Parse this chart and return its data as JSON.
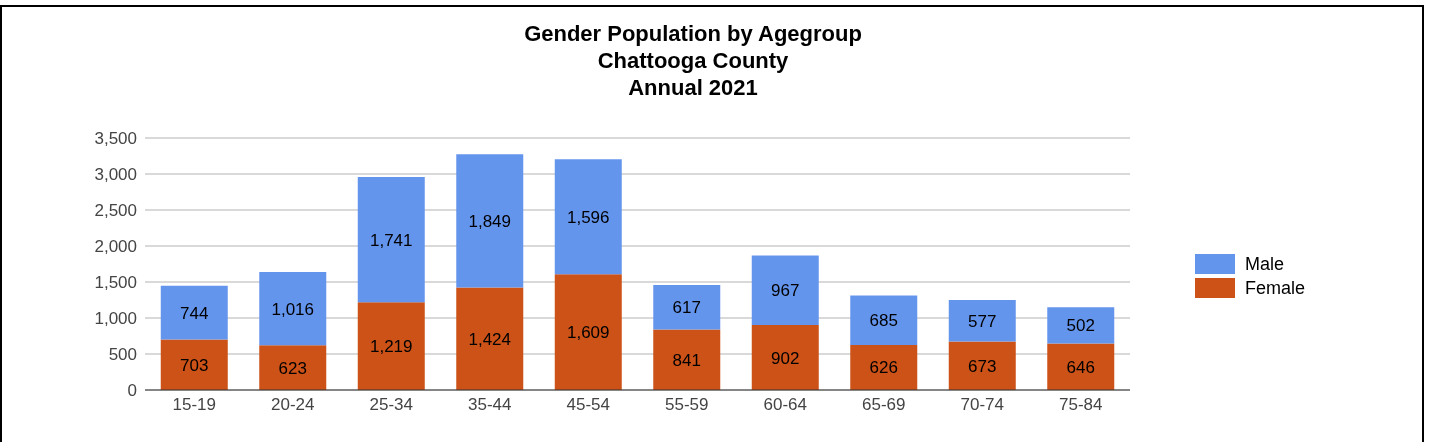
{
  "chart_data": {
    "type": "bar",
    "title": "Gender Population by Agegroup",
    "subtitle": "Chattooga County\nAnnual 2021",
    "categories": [
      "15-19",
      "20-24",
      "25-34",
      "35-44",
      "45-54",
      "55-59",
      "60-64",
      "65-69",
      "70-74",
      "75-84"
    ],
    "stacked": true,
    "series": [
      {
        "name": "Female",
        "color": "#cc5218",
        "values": [
          703,
          623,
          1219,
          1424,
          1609,
          841,
          902,
          626,
          673,
          646
        ],
        "value_labels": [
          "703",
          "623",
          "1,219",
          "1,424",
          "1,609",
          "841",
          "902",
          "626",
          "673",
          "646"
        ]
      },
      {
        "name": "Male",
        "color": "#6495ed",
        "values": [
          744,
          1016,
          1741,
          1849,
          1596,
          617,
          967,
          685,
          577,
          502
        ],
        "value_labels": [
          "744",
          "1,016",
          "1,741",
          "1,849",
          "1,596",
          "617",
          "967",
          "685",
          "577",
          "502"
        ]
      }
    ],
    "ylim": [
      0,
      3500
    ],
    "yticks": [
      0,
      500,
      {
        "value": 1000,
        "label": "1,000"
      },
      {
        "value": 1500,
        "label": "1,500"
      },
      {
        "value": 2000,
        "label": "2,000"
      },
      {
        "value": 2500,
        "label": "2,500"
      },
      {
        "value": 3000,
        "label": "3,000"
      },
      {
        "value": 3500,
        "label": "3,500"
      }
    ],
    "grid": "y",
    "legend": "right"
  }
}
